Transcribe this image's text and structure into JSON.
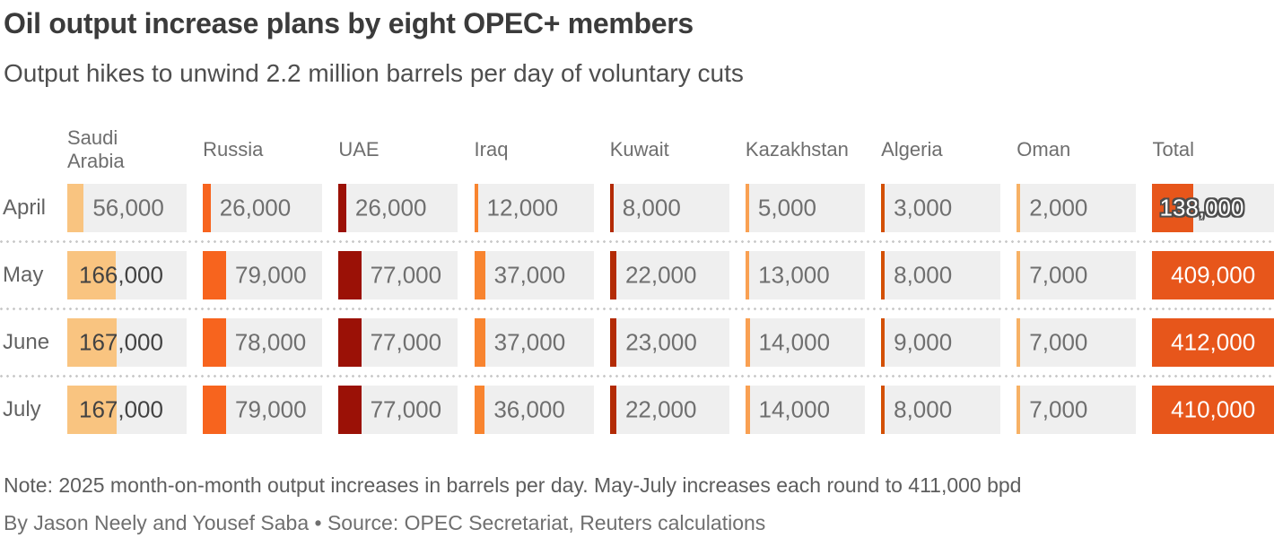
{
  "title": "Oil output increase plans by eight OPEC+ members",
  "subtitle": "Output hikes to unwind 2.2 million barrels per day of voluntary cuts",
  "note": "Note: 2025 month-on-month output increases in barrels per day. May-July increases each round to 411,000 bpd",
  "byline": "By Jason Neely and Yousef Saba • Source: OPEC Secretariat, Reuters calculations",
  "chart_data": {
    "type": "table",
    "title": "Oil output increase plans by eight OPEC+ members",
    "unit": "barrels per day, 2025 month-on-month output increases",
    "row_label": "month",
    "rows": [
      "April",
      "May",
      "June",
      "July"
    ],
    "columns": [
      "Saudi Arabia",
      "Russia",
      "UAE",
      "Iraq",
      "Kuwait",
      "Kazakhstan",
      "Algeria",
      "Oman",
      "Total"
    ],
    "series": [
      {
        "name": "Saudi Arabia",
        "color": "#F9C480",
        "values": [
          56000,
          166000,
          167000,
          167000
        ]
      },
      {
        "name": "Russia",
        "color": "#F7641E",
        "values": [
          26000,
          79000,
          78000,
          79000
        ]
      },
      {
        "name": "UAE",
        "color": "#9B1106",
        "values": [
          26000,
          77000,
          77000,
          77000
        ]
      },
      {
        "name": "Iraq",
        "color": "#F8842F",
        "values": [
          12000,
          37000,
          37000,
          36000
        ]
      },
      {
        "name": "Kuwait",
        "color": "#B32B05",
        "values": [
          8000,
          22000,
          23000,
          22000
        ]
      },
      {
        "name": "Kazakhstan",
        "color": "#F9A052",
        "values": [
          5000,
          13000,
          14000,
          14000
        ]
      },
      {
        "name": "Algeria",
        "color": "#D35004",
        "values": [
          3000,
          8000,
          9000,
          8000
        ]
      },
      {
        "name": "Oman",
        "color": "#F7B165",
        "values": [
          2000,
          7000,
          7000,
          7000
        ]
      }
    ],
    "totals": {
      "name": "Total",
      "color": "#E7561B",
      "values": [
        138000,
        409000,
        412000,
        410000
      ]
    },
    "bar_axis_max": 412000,
    "cell_background": "#EFEFEF",
    "legend_position": "none",
    "grid": "dotted row separators"
  }
}
